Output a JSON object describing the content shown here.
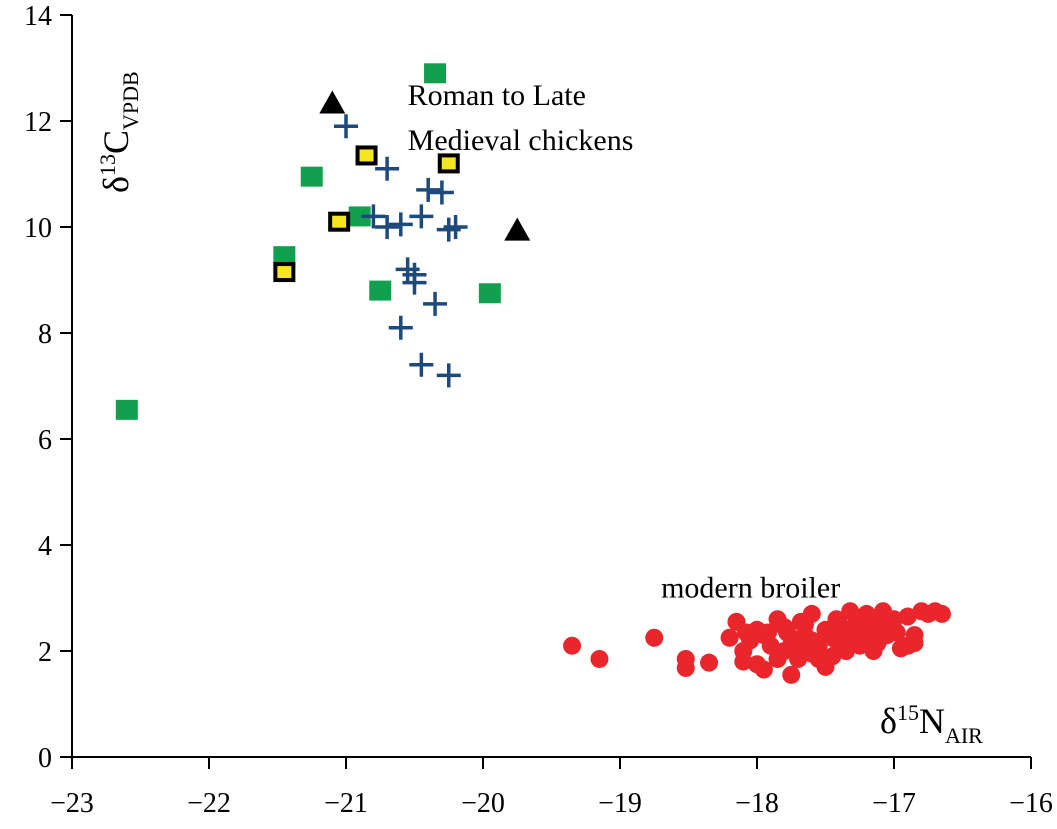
{
  "chart_data": {
    "type": "scatter",
    "xlabel": {
      "main": "δ",
      "sup": "15",
      "letter": "N",
      "sub": "AIR"
    },
    "ylabel": {
      "main": "δ",
      "sup": "13",
      "letter": "C",
      "sub": "VPDB"
    },
    "xlim": [
      -23,
      -16
    ],
    "ylim": [
      0,
      14
    ],
    "xticks": [
      -23,
      -22,
      -21,
      -20,
      -19,
      -18,
      -17,
      -16
    ],
    "xtick_labels": [
      "−23",
      "−22",
      "−21",
      "−20",
      "−19",
      "−18",
      "−17",
      "−16"
    ],
    "yticks": [
      0,
      2,
      4,
      6,
      8,
      10,
      12,
      14
    ],
    "ytick_labels": [
      "0",
      "2",
      "4",
      "6",
      "8",
      "10",
      "12",
      "14"
    ],
    "grid": false,
    "annotations": [
      {
        "lines": [
          "Roman to Late",
          "Medieval chickens"
        ],
        "x": -20.55,
        "y": 12.3
      },
      {
        "lines": [
          "modern broiler"
        ],
        "x": -18.7,
        "y": 3.2
      }
    ],
    "series": [
      {
        "marker": "square",
        "color": "#12a04f",
        "points": [
          [
            -22.6,
            6.55
          ],
          [
            -21.45,
            9.45
          ],
          [
            -21.25,
            10.95
          ],
          [
            -20.35,
            12.9
          ],
          [
            -20.9,
            10.2
          ],
          [
            -20.75,
            8.8
          ],
          [
            -19.95,
            8.75
          ]
        ]
      },
      {
        "marker": "square-outlined",
        "color": "#f5e620",
        "points": [
          [
            -21.45,
            9.15
          ],
          [
            -21.05,
            10.1
          ],
          [
            -20.85,
            11.35
          ],
          [
            -20.25,
            11.2
          ]
        ]
      },
      {
        "marker": "triangle",
        "color": "#000000",
        "points": [
          [
            -21.1,
            12.35
          ],
          [
            -19.75,
            9.95
          ]
        ]
      },
      {
        "marker": "plus",
        "color": "#1c4a7c",
        "points": [
          [
            -21.0,
            11.9
          ],
          [
            -20.7,
            11.1
          ],
          [
            -20.8,
            10.2
          ],
          [
            -20.7,
            10.0
          ],
          [
            -20.6,
            10.05
          ],
          [
            -20.45,
            10.2
          ],
          [
            -20.4,
            10.7
          ],
          [
            -20.3,
            10.65
          ],
          [
            -20.25,
            9.95
          ],
          [
            -20.2,
            10.0
          ],
          [
            -20.55,
            9.2
          ],
          [
            -20.5,
            9.1
          ],
          [
            -20.5,
            8.95
          ],
          [
            -20.35,
            8.55
          ],
          [
            -20.6,
            8.1
          ],
          [
            -20.45,
            7.4
          ],
          [
            -20.25,
            7.2
          ]
        ]
      },
      {
        "marker": "circle",
        "color": "#e8262c",
        "points": [
          [
            -19.35,
            2.1
          ],
          [
            -19.15,
            1.85
          ],
          [
            -18.75,
            2.25
          ],
          [
            -18.52,
            1.85
          ],
          [
            -18.52,
            1.68
          ],
          [
            -18.35,
            1.78
          ],
          [
            -18.2,
            2.25
          ],
          [
            -18.15,
            2.55
          ],
          [
            -18.1,
            2.0
          ],
          [
            -18.1,
            1.8
          ],
          [
            -18.05,
            2.2
          ],
          [
            -18.0,
            1.75
          ],
          [
            -17.95,
            1.65
          ],
          [
            -17.92,
            2.35
          ],
          [
            -17.9,
            2.1
          ],
          [
            -17.85,
            1.85
          ],
          [
            -17.8,
            2.45
          ],
          [
            -17.8,
            2.0
          ],
          [
            -17.75,
            2.25
          ],
          [
            -17.7,
            1.85
          ],
          [
            -17.7,
            2.1
          ],
          [
            -17.68,
            2.55
          ],
          [
            -17.65,
            2.3
          ],
          [
            -17.6,
            1.95
          ],
          [
            -17.6,
            2.7
          ],
          [
            -17.55,
            2.1
          ],
          [
            -17.5,
            2.4
          ],
          [
            -17.5,
            1.7
          ],
          [
            -17.45,
            2.25
          ],
          [
            -17.42,
            2.6
          ],
          [
            -17.4,
            2.05
          ],
          [
            -17.35,
            2.35
          ],
          [
            -17.32,
            2.75
          ],
          [
            -17.3,
            2.2
          ],
          [
            -17.28,
            2.5
          ],
          [
            -17.25,
            2.1
          ],
          [
            -17.22,
            2.4
          ],
          [
            -17.2,
            2.7
          ],
          [
            -17.18,
            2.3
          ],
          [
            -17.15,
            2.55
          ],
          [
            -17.12,
            2.15
          ],
          [
            -17.1,
            2.45
          ],
          [
            -17.08,
            2.75
          ],
          [
            -17.05,
            2.3
          ],
          [
            -17.0,
            2.6
          ],
          [
            -16.98,
            2.35
          ],
          [
            -16.95,
            2.05
          ],
          [
            -16.9,
            2.65
          ],
          [
            -16.85,
            2.3
          ],
          [
            -16.8,
            2.75
          ],
          [
            -16.75,
            2.7
          ],
          [
            -16.7,
            2.75
          ],
          [
            -16.65,
            2.7
          ],
          [
            -17.75,
            1.55
          ],
          [
            -17.55,
            1.85
          ],
          [
            -17.85,
            2.6
          ],
          [
            -17.35,
            2.0
          ],
          [
            -17.15,
            2.0
          ],
          [
            -16.9,
            2.1
          ],
          [
            -17.65,
            2.5
          ],
          [
            -17.45,
            1.9
          ],
          [
            -17.95,
            2.3
          ],
          [
            -18.0,
            2.4
          ],
          [
            -17.25,
            2.3
          ],
          [
            -17.05,
            2.5
          ],
          [
            -16.85,
            2.15
          ],
          [
            -17.4,
            2.5
          ],
          [
            -17.6,
            2.2
          ],
          [
            -17.78,
            2.35
          ],
          [
            -18.08,
            2.35
          ]
        ]
      }
    ]
  }
}
